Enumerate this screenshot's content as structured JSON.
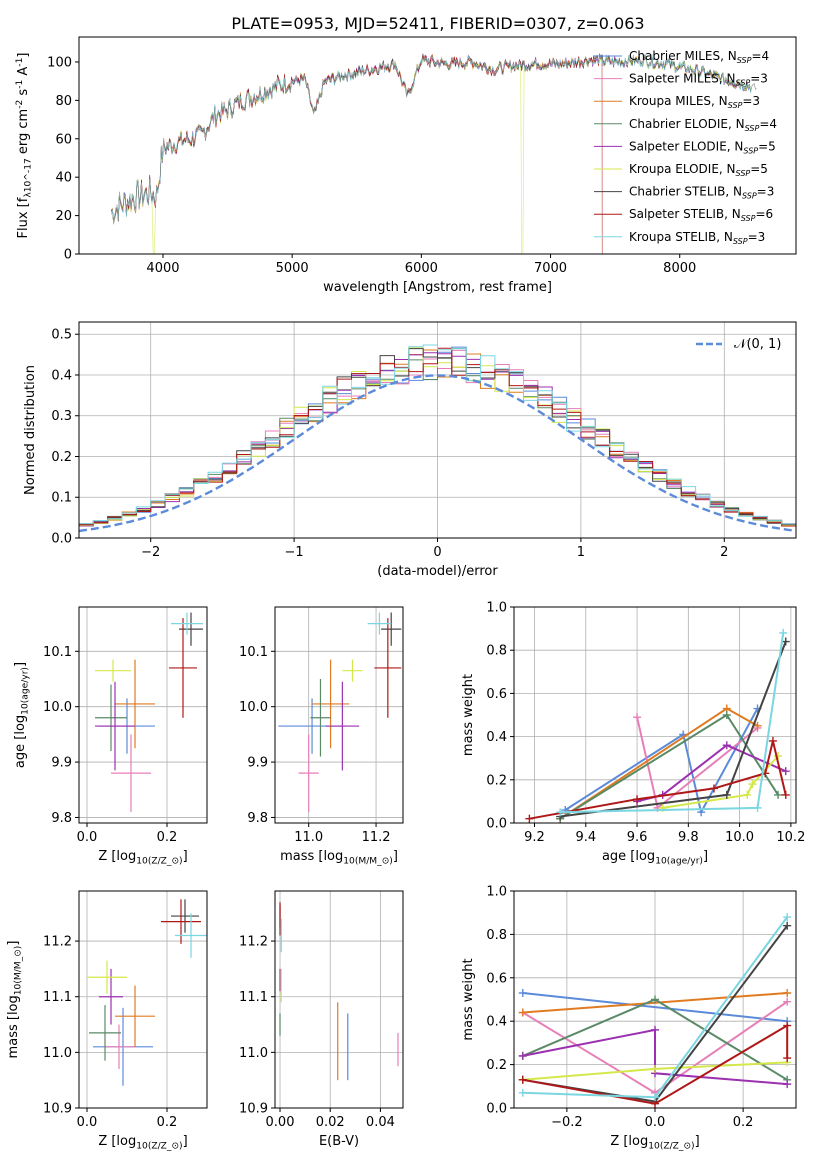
{
  "figure_title": "PLATE=0953, MJD=52411, FIBERID=0307, z=0.063",
  "colors": {
    "Chabrier MILES": "#5b8bd9",
    "Salpeter MILES": "#e77fb8",
    "Kroupa MILES": "#e07b22",
    "Chabrier ELODIE": "#5a8a66",
    "Salpeter ELODIE": "#9b30b0",
    "Kroupa ELODIE": "#d4e84a",
    "Chabrier STELIB": "#444444",
    "Salpeter STELIB": "#b01818",
    "Kroupa STELIB": "#7ad6e0",
    "normal_curve": "#5b8bd9",
    "grid": "#b0b0b0"
  },
  "chart_data": [
    {
      "id": "spectrum",
      "type": "line",
      "title": "PLATE=0953, MJD=52411, FIBERID=0307, z=0.063",
      "xlabel": "wavelength [Angstrom, rest frame]",
      "ylabel": "Flux [f_λ10^-17 erg cm^-2 s^-1 A^-1]",
      "xlim": [
        3350,
        8900
      ],
      "ylim": [
        0,
        113
      ],
      "xticks": [
        4000,
        5000,
        6000,
        7000,
        8000
      ],
      "yticks": [
        0,
        20,
        40,
        60,
        80,
        100
      ],
      "grid": false,
      "legend": "upper right",
      "legend_labels": [
        "Chabrier MILES, N_SSP=4",
        "Salpeter MILES, N_SSP=3",
        "Kroupa MILES, N_SSP=3",
        "Chabrier ELODIE, N_SSP=4",
        "Salpeter ELODIE, N_SSP=5",
        "Kroupa ELODIE, N_SSP=5",
        "Chabrier STELIB, N_SSP=3",
        "Salpeter STELIB, N_SSP=6",
        "Kroupa STELIB, N_SSP=3"
      ],
      "continuum_x": [
        3600,
        3700,
        3800,
        3900,
        3950,
        4000,
        4100,
        4200,
        4300,
        4400,
        4500,
        4600,
        4700,
        4800,
        4900,
        5000,
        5100,
        5170,
        5250,
        5400,
        5600,
        5800,
        5893,
        6000,
        6200,
        6400,
        6563,
        6700,
        6900,
        7100,
        7300,
        7500,
        7700,
        7900,
        8100,
        8300,
        8500,
        8600
      ],
      "continuum_y": [
        22,
        27,
        30,
        32,
        30,
        55,
        58,
        60,
        62,
        72,
        75,
        80,
        82,
        85,
        88,
        90,
        91,
        72,
        90,
        93,
        96,
        99,
        82,
        101,
        99,
        100,
        96,
        98,
        99,
        99,
        101,
        100,
        101,
        99,
        96,
        92,
        88,
        86
      ],
      "features": [
        {
          "series": "Kroupa ELODIE",
          "x": 3930,
          "note": "drop to 0"
        },
        {
          "series": "Kroupa ELODIE",
          "x": 6780,
          "note": "drop to 0"
        },
        {
          "series": "Salpeter STELIB",
          "x": 7400,
          "note": "end of model coverage"
        }
      ]
    },
    {
      "id": "residuals",
      "type": "histogram",
      "xlabel": "(data-model)/error",
      "ylabel": "Normed distribution",
      "xlim": [
        -2.5,
        2.5
      ],
      "ylim": [
        0,
        0.53
      ],
      "xticks": [
        -2,
        -1,
        0,
        1,
        2
      ],
      "yticks": [
        0.0,
        0.1,
        0.2,
        0.3,
        0.4,
        0.5
      ],
      "grid": true,
      "legend": "upper right",
      "legend_labels": [
        "𝒩(0, 1)"
      ],
      "bin_width": 0.1,
      "overlay": "normal pdf mean 0 sigma 1, dashed"
    },
    {
      "id": "age_vs_Z",
      "type": "errorbar",
      "xlabel": "Z [log10(Z/Z_⊙)]",
      "ylabel": "age  [log10(age/yr)]",
      "xlim": [
        -0.02,
        0.3
      ],
      "ylim": [
        9.79,
        10.18
      ],
      "xticks": [
        0.0,
        0.2
      ],
      "yticks": [
        9.8,
        9.9,
        10.0,
        10.1
      ],
      "grid": true,
      "points": [
        {
          "series": "Chabrier MILES",
          "x": 0.1,
          "xerr": 0.07,
          "y": 9.965,
          "yerr": 0.05
        },
        {
          "series": "Salpeter MILES",
          "x": 0.11,
          "xerr": 0.05,
          "y": 9.88,
          "yerr": 0.07
        },
        {
          "series": "Kroupa MILES",
          "x": 0.12,
          "xerr": 0.05,
          "y": 10.005,
          "yerr": 0.08
        },
        {
          "series": "Chabrier ELODIE",
          "x": 0.06,
          "xerr": 0.04,
          "y": 9.98,
          "yerr": 0.06
        },
        {
          "series": "Salpeter ELODIE",
          "x": 0.07,
          "xerr": 0.05,
          "y": 9.965,
          "yerr": 0.08
        },
        {
          "series": "Kroupa ELODIE",
          "x": 0.065,
          "xerr": 0.045,
          "y": 10.065,
          "yerr": 0.02
        },
        {
          "series": "Chabrier STELIB",
          "x": 0.26,
          "xerr": 0.03,
          "y": 10.14,
          "yerr": 0.03
        },
        {
          "series": "Salpeter STELIB",
          "x": 0.24,
          "xerr": 0.035,
          "y": 10.07,
          "yerr": 0.09
        },
        {
          "series": "Kroupa STELIB",
          "x": 0.25,
          "xerr": 0.04,
          "y": 10.15,
          "yerr": 0.02
        }
      ]
    },
    {
      "id": "age_vs_mass",
      "type": "errorbar",
      "xlabel": "mass [log10(M/M_⊙)]",
      "ylabel": "",
      "xlim": [
        10.9,
        11.28
      ],
      "ylim": [
        9.79,
        10.18
      ],
      "xticks": [
        11.0,
        11.2
      ],
      "yticks": [
        9.8,
        9.9,
        10.0,
        10.1
      ],
      "grid": true,
      "points": [
        {
          "series": "Chabrier MILES",
          "x": 11.01,
          "xerr": 0.1,
          "y": 9.965,
          "yerr": 0.05
        },
        {
          "series": "Salpeter MILES",
          "x": 11.0,
          "xerr": 0.03,
          "y": 9.88,
          "yerr": 0.07
        },
        {
          "series": "Kroupa MILES",
          "x": 11.065,
          "xerr": 0.055,
          "y": 10.005,
          "yerr": 0.08
        },
        {
          "series": "Chabrier ELODIE",
          "x": 11.035,
          "xerr": 0.03,
          "y": 9.98,
          "yerr": 0.07
        },
        {
          "series": "Salpeter ELODIE",
          "x": 11.1,
          "xerr": 0.05,
          "y": 9.965,
          "yerr": 0.08
        },
        {
          "series": "Kroupa ELODIE",
          "x": 11.13,
          "xerr": 0.03,
          "y": 10.065,
          "yerr": 0.02
        },
        {
          "series": "Chabrier STELIB",
          "x": 11.245,
          "xerr": 0.03,
          "y": 10.14,
          "yerr": 0.03
        },
        {
          "series": "Salpeter STELIB",
          "x": 11.235,
          "xerr": 0.04,
          "y": 10.07,
          "yerr": 0.09
        },
        {
          "series": "Kroupa STELIB",
          "x": 11.21,
          "xerr": 0.035,
          "y": 10.15,
          "yerr": 0.02
        }
      ]
    },
    {
      "id": "weight_vs_age",
      "type": "line",
      "xlabel": "age  [log10(age/yr)]",
      "ylabel": "mass weight",
      "xlim": [
        9.12,
        10.22
      ],
      "ylim": [
        0,
        1.0
      ],
      "xticks": [
        9.2,
        9.4,
        9.6,
        9.8,
        10.0,
        10.2
      ],
      "yticks": [
        0.0,
        0.2,
        0.4,
        0.6,
        0.8,
        1.0
      ],
      "grid": true,
      "series": [
        {
          "name": "Chabrier MILES",
          "x": [
            9.32,
            9.78,
            9.85,
            10.07
          ],
          "y": [
            0.06,
            0.41,
            0.05,
            0.53
          ]
        },
        {
          "name": "Salpeter MILES",
          "x": [
            9.6,
            9.68,
            10.07
          ],
          "y": [
            0.49,
            0.07,
            0.44
          ]
        },
        {
          "name": "Kroupa MILES",
          "x": [
            9.3,
            9.95,
            10.07
          ],
          "y": [
            0.02,
            0.53,
            0.45
          ]
        },
        {
          "name": "Chabrier ELODIE",
          "x": [
            9.3,
            9.95,
            10.15
          ],
          "y": [
            0.02,
            0.5,
            0.13
          ]
        },
        {
          "name": "Salpeter ELODIE",
          "x": [
            9.6,
            9.7,
            9.95,
            10.18
          ],
          "y": [
            0.1,
            0.13,
            0.36,
            0.24
          ]
        },
        {
          "name": "Kroupa ELODIE",
          "x": [
            9.7,
            10.03,
            10.05,
            10.15
          ],
          "y": [
            0.07,
            0.13,
            0.18,
            0.31
          ]
        },
        {
          "name": "Chabrier STELIB",
          "x": [
            9.3,
            9.95,
            10.18
          ],
          "y": [
            0.03,
            0.13,
            0.84
          ]
        },
        {
          "name": "Salpeter STELIB",
          "x": [
            9.18,
            9.6,
            9.9,
            10.1,
            10.13,
            10.18
          ],
          "y": [
            0.02,
            0.11,
            0.16,
            0.23,
            0.38,
            0.13
          ]
        },
        {
          "name": "Kroupa STELIB",
          "x": [
            9.3,
            10.07,
            10.17
          ],
          "y": [
            0.05,
            0.07,
            0.88
          ]
        }
      ]
    },
    {
      "id": "mass_vs_Z",
      "type": "errorbar",
      "xlabel": "Z [log10(Z/Z_⊙)]",
      "ylabel": "mass [log10(M/M_⊙)]",
      "xlim": [
        -0.02,
        0.3
      ],
      "ylim": [
        10.9,
        11.29
      ],
      "xticks": [
        0.0,
        0.2
      ],
      "yticks": [
        10.9,
        11.0,
        11.1,
        11.2
      ],
      "grid": true,
      "points": [
        {
          "series": "Chabrier MILES",
          "x": 0.09,
          "xerr": 0.075,
          "y": 11.01,
          "yerr": 0.07
        },
        {
          "series": "Salpeter MILES",
          "x": 0.08,
          "xerr": 0.04,
          "y": 11.01,
          "yerr": 0.04
        },
        {
          "series": "Kroupa MILES",
          "x": 0.12,
          "xerr": 0.05,
          "y": 11.065,
          "yerr": 0.055
        },
        {
          "series": "Chabrier ELODIE",
          "x": 0.045,
          "xerr": 0.04,
          "y": 11.035,
          "yerr": 0.05
        },
        {
          "series": "Salpeter ELODIE",
          "x": 0.06,
          "xerr": 0.03,
          "y": 11.1,
          "yerr": 0.05
        },
        {
          "series": "Kroupa ELODIE",
          "x": 0.05,
          "xerr": 0.05,
          "y": 11.135,
          "yerr": 0.03
        },
        {
          "series": "Chabrier STELIB",
          "x": 0.245,
          "xerr": 0.035,
          "y": 11.245,
          "yerr": 0.03
        },
        {
          "series": "Salpeter STELIB",
          "x": 0.235,
          "xerr": 0.05,
          "y": 11.235,
          "yerr": 0.04
        },
        {
          "series": "Kroupa STELIB",
          "x": 0.26,
          "xerr": 0.04,
          "y": 11.21,
          "yerr": 0.04
        }
      ]
    },
    {
      "id": "mass_vs_EBV",
      "type": "errorbar",
      "xlabel": "E(B-V)",
      "ylabel": "",
      "xlim": [
        -0.002,
        0.049
      ],
      "ylim": [
        10.9,
        11.29
      ],
      "xticks": [
        0.0,
        0.02,
        0.04
      ],
      "yticks": [
        10.9,
        11.0,
        11.1,
        11.2
      ],
      "grid": true,
      "points": [
        {
          "series": "Chabrier MILES",
          "x": 0.027,
          "y": 11.01,
          "yerr": 0.06
        },
        {
          "series": "Salpeter MILES",
          "x": 0.047,
          "y": 11.005,
          "yerr": 0.03
        },
        {
          "series": "Kroupa MILES",
          "x": 0.023,
          "y": 11.02,
          "yerr": 0.07
        },
        {
          "series": "Chabrier ELODIE",
          "x": 0.0,
          "y": 11.05,
          "yerr": 0.02
        },
        {
          "series": "Salpeter ELODIE",
          "x": 0.0,
          "y": 11.13,
          "yerr": 0.02
        },
        {
          "series": "Kroupa ELODIE",
          "x": 0.0005,
          "y": 11.12,
          "yerr": 0.03
        },
        {
          "series": "Chabrier STELIB",
          "x": 0.0,
          "y": 11.245,
          "yerr": 0.02
        },
        {
          "series": "Salpeter STELIB",
          "x": 0.0,
          "y": 11.24,
          "yerr": 0.03
        },
        {
          "series": "Kroupa STELIB",
          "x": 0.0005,
          "y": 11.21,
          "yerr": 0.03
        }
      ]
    },
    {
      "id": "weight_vs_Z",
      "type": "line",
      "xlabel": "Z [log10(Z/Z_⊙)]",
      "ylabel": "mass weight",
      "xlim": [
        -0.32,
        0.32
      ],
      "ylim": [
        0,
        1.0
      ],
      "xticks": [
        -0.2,
        0.0,
        0.2
      ],
      "yticks": [
        0.0,
        0.2,
        0.4,
        0.6,
        0.8,
        1.0
      ],
      "grid": true,
      "series": [
        {
          "name": "Chabrier MILES",
          "x": [
            -0.3,
            0.3
          ],
          "y": [
            0.53,
            0.4
          ]
        },
        {
          "name": "Salpeter MILES",
          "x": [
            -0.3,
            0.0,
            0.3
          ],
          "y": [
            0.44,
            0.07,
            0.49
          ]
        },
        {
          "name": "Kroupa MILES",
          "x": [
            -0.3,
            0.3
          ],
          "y": [
            0.44,
            0.53
          ]
        },
        {
          "name": "Chabrier ELODIE",
          "x": [
            -0.3,
            0.0,
            0.3
          ],
          "y": [
            0.24,
            0.5,
            0.13
          ]
        },
        {
          "name": "Salpeter ELODIE",
          "x": [
            -0.3,
            0.0,
            0.0,
            0.3
          ],
          "y": [
            0.24,
            0.36,
            0.16,
            0.11
          ]
        },
        {
          "name": "Kroupa ELODIE",
          "x": [
            -0.3,
            0.0,
            0.3
          ],
          "y": [
            0.13,
            0.18,
            0.21
          ]
        },
        {
          "name": "Chabrier STELIB",
          "x": [
            -0.3,
            0.0,
            0.3
          ],
          "y": [
            0.13,
            0.03,
            0.84
          ]
        },
        {
          "name": "Salpeter STELIB",
          "x": [
            -0.3,
            0.0,
            0.3,
            0.3
          ],
          "y": [
            0.13,
            0.02,
            0.38,
            0.23
          ]
        },
        {
          "name": "Kroupa STELIB",
          "x": [
            -0.3,
            0.0,
            0.3
          ],
          "y": [
            0.07,
            0.05,
            0.88
          ]
        }
      ]
    }
  ]
}
